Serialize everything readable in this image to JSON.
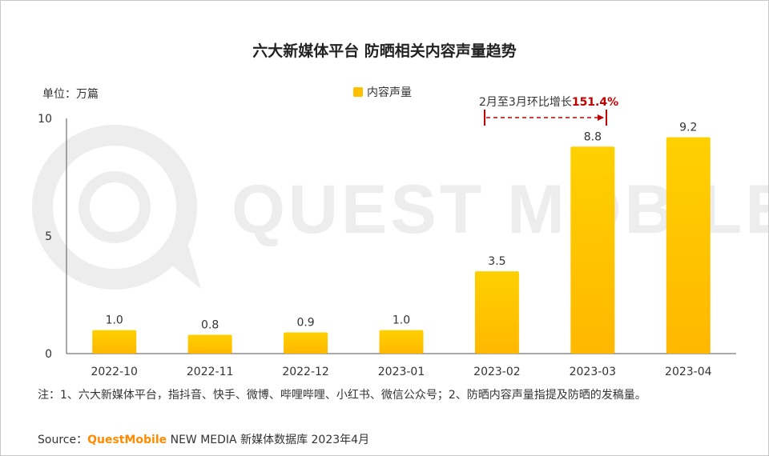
{
  "colors": {
    "bar_top": "#ffd000",
    "bar_bottom": "#ffb800",
    "axis": "#555555",
    "annotation": "#c00000",
    "brand": "#ff8a00",
    "watermark": "#ededed"
  },
  "watermark": {
    "text": "QUEST MOBILE"
  },
  "unit_label": "单位：万篇",
  "annotation": {
    "prefix": "2月至3月环比增长",
    "value": "151.4%"
  },
  "footnote": "注：1、六大新媒体平台，指抖音、快手、微博、哔哩哔哩、小红书、微信公众号；2、防晒内容声量指提及防晒的发稿量。",
  "source": {
    "label": "Source：",
    "brand": "QuestMobile",
    "rest": " NEW MEDIA 新媒体数据库 2023年4月"
  },
  "chart_data": {
    "type": "bar",
    "title": "六大新媒体平台 防晒相关内容声量趋势",
    "categories": [
      "2022-10",
      "2022-11",
      "2022-12",
      "2023-01",
      "2023-02",
      "2023-03",
      "2023-04"
    ],
    "series": [
      {
        "name": "内容声量",
        "values": [
          1.0,
          0.8,
          0.9,
          1.0,
          3.5,
          8.8,
          9.2
        ],
        "labels": [
          "1.0",
          "0.8",
          "0.9",
          "1.0",
          "3.5",
          "8.8",
          "9.2"
        ]
      }
    ],
    "xlabel": "",
    "ylabel": "单位：万篇",
    "ylim": [
      0,
      10
    ],
    "yticks": [
      0,
      5,
      10
    ],
    "legend": "top-center",
    "grid": false
  }
}
